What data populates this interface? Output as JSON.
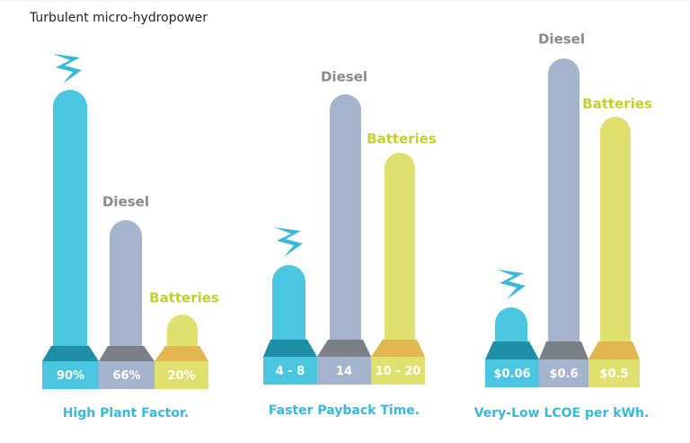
{
  "title": "Turbulent micro-hydropower",
  "panels": [
    {
      "caption": "High Plant Factor.",
      "bars": [
        {
          "value": "90%"
        },
        {
          "label": "Diesel",
          "value": "66%"
        },
        {
          "label": "Batteries",
          "value": "20%"
        }
      ]
    },
    {
      "caption": "Faster Payback Time.",
      "bars": [
        {
          "value": "4 - 8"
        },
        {
          "label": "Diesel",
          "value": "14"
        },
        {
          "label": "Batteries",
          "value": "10 - 20"
        }
      ]
    },
    {
      "caption": "Very-Low LCOE per kWh.",
      "bars": [
        {
          "value": "$0.06"
        },
        {
          "label": "Diesel",
          "value": "$0.6"
        },
        {
          "label": "Batteries",
          "value": "$0.5"
        }
      ]
    }
  ]
}
